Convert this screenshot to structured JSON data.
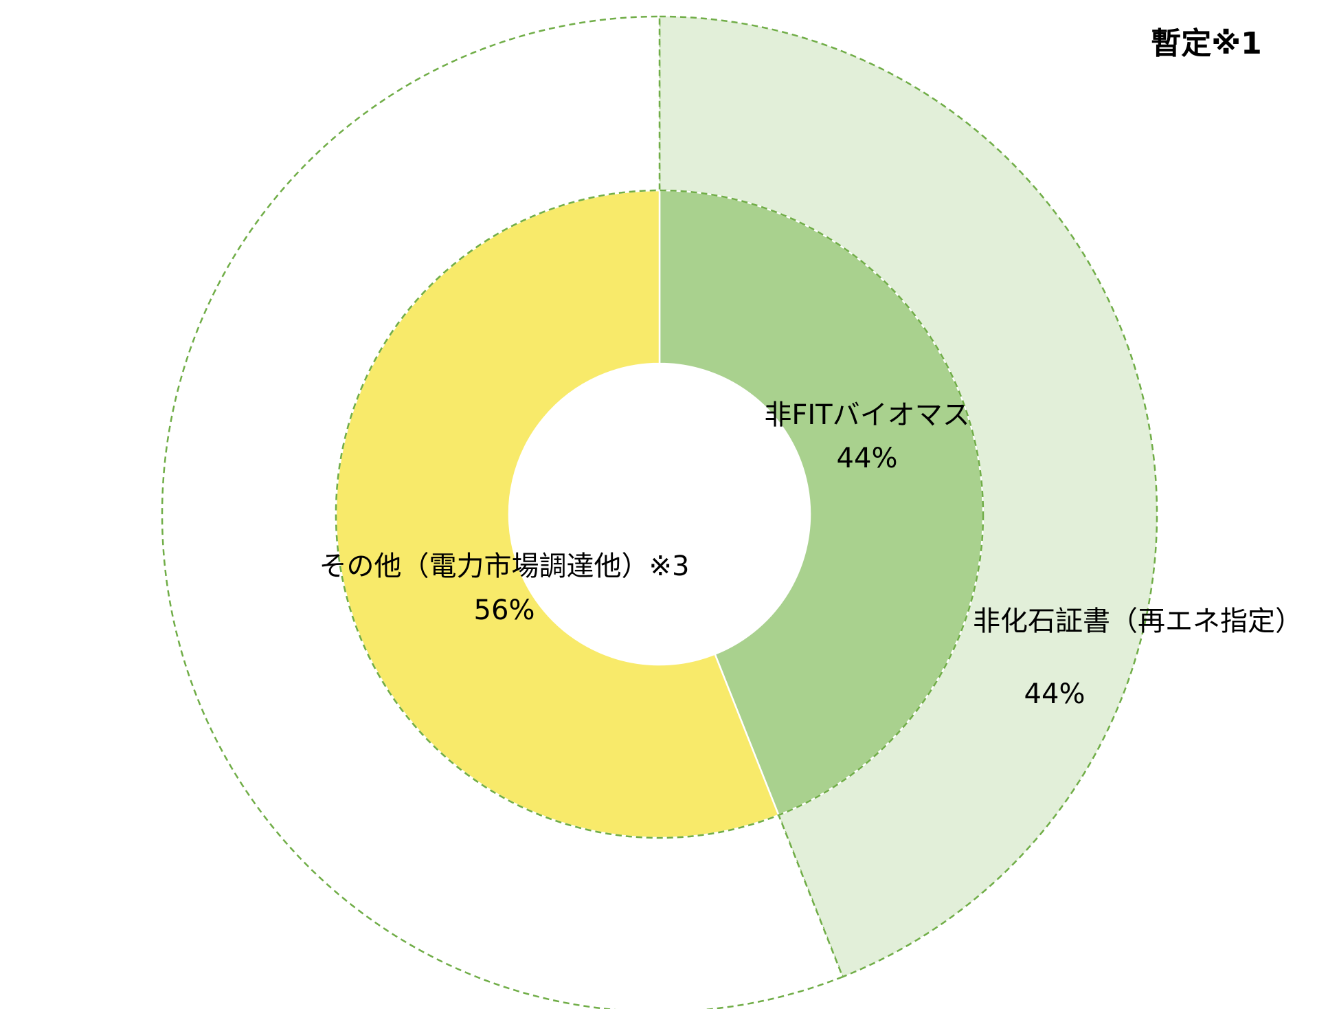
{
  "chart_data": {
    "type": "donut",
    "annotation": "暫定※1",
    "rings": [
      {
        "categories": [
          "非FITバイオマス",
          "その他（電力市場調達他）※3"
        ],
        "values": [
          44,
          56
        ],
        "value_labels": [
          "44%",
          "56%"
        ],
        "colors": [
          "#a9d18e",
          "#f8ea6a"
        ]
      },
      {
        "categories": [
          "非化石証書（再エネ指定）",
          null
        ],
        "values": [
          44,
          56
        ],
        "value_labels": [
          "44%",
          null
        ],
        "colors": [
          "#e2efd9",
          "#ffffff"
        ]
      }
    ]
  }
}
